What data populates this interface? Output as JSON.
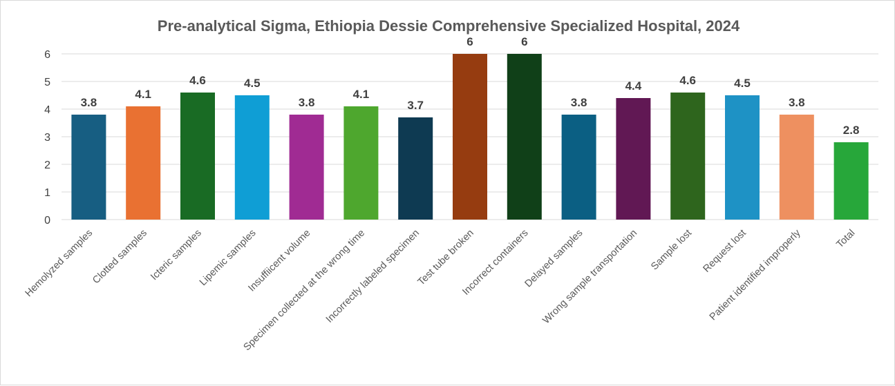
{
  "chart_data": {
    "type": "bar",
    "title": "Pre-analytical Sigma, Ethiopia Dessie Comprehensive Specialized Hospital, 2024",
    "xlabel": "",
    "ylabel": "",
    "ylim": [
      0,
      6
    ],
    "yticks": [
      0,
      1,
      2,
      3,
      4,
      5,
      6
    ],
    "grid": true,
    "categories": [
      "Hemolyzed samples",
      "Clotted samples",
      "Icteric samples",
      "Lipemic samples",
      "Insuffiicent volume",
      "Specimen collected at the wrong time",
      "Incorrectly labeled specimen",
      "Test tube broken",
      "Incorrect containers",
      "Delayed samples",
      "Wrong sample transportation",
      "Sample lost",
      "Request lost",
      "Patient identified improperly",
      "Total"
    ],
    "values": [
      3.8,
      4.1,
      4.6,
      4.5,
      3.8,
      4.1,
      3.7,
      6,
      6,
      3.8,
      4.4,
      4.6,
      4.5,
      3.8,
      2.8
    ],
    "colors": [
      "#175e82",
      "#e97132",
      "#196b24",
      "#0f9ed5",
      "#a02b93",
      "#4ea72e",
      "#0e3a52",
      "#963c10",
      "#104018",
      "#0b5f83",
      "#611854",
      "#2e651d",
      "#1e92c5",
      "#ee9060",
      "#27a73a"
    ]
  }
}
